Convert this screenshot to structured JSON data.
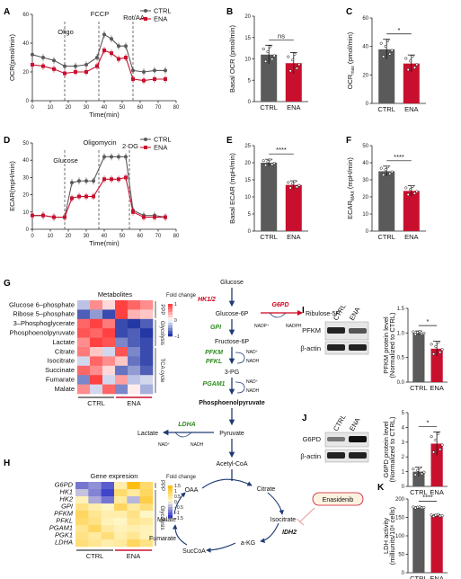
{
  "colors": {
    "ctrl": "#5a5a5a",
    "ena": "#c8102e",
    "green": "#2e8b1e",
    "red": "#d0021b",
    "navy": "#1f3b73"
  },
  "panel_letters": [
    "A",
    "B",
    "C",
    "D",
    "E",
    "F",
    "G",
    "H",
    "I",
    "J",
    "K"
  ],
  "chart_data": [
    {
      "id": "A",
      "type": "line",
      "xlabel": "Time(min)",
      "ylabel": "OCR(pmol/min)",
      "xlim": [
        0,
        80
      ],
      "ylim": [
        0,
        60
      ],
      "xticks": [
        "0",
        "10",
        "20",
        "30",
        "40",
        "50",
        "60",
        "70",
        "80"
      ],
      "yticks": [
        "0",
        "20",
        "40",
        "60"
      ],
      "annotations": [
        {
          "text": "Oligo",
          "x": 18
        },
        {
          "text": "FCCP",
          "x": 37
        },
        {
          "text": "Rot/AA",
          "x": 56
        }
      ],
      "legend": [
        "CTRL",
        "ENA"
      ],
      "series": [
        {
          "name": "CTRL",
          "x": [
            0,
            6,
            12,
            18,
            24,
            30,
            36,
            40,
            44,
            48,
            52,
            56,
            62,
            68,
            74
          ],
          "y": [
            32,
            30,
            28,
            24,
            24,
            25,
            30,
            46,
            43,
            38,
            38,
            21,
            20,
            21,
            21
          ]
        },
        {
          "name": "ENA",
          "x": [
            0,
            6,
            12,
            18,
            24,
            30,
            36,
            40,
            44,
            48,
            52,
            56,
            62,
            68,
            74
          ],
          "y": [
            25,
            24,
            22,
            19,
            20,
            20,
            24,
            35,
            33,
            29,
            30,
            15,
            14,
            15,
            15
          ]
        }
      ]
    },
    {
      "id": "B",
      "type": "bar",
      "ylabel": "Basal OCR (pmol/min)",
      "categories": [
        "CTRL",
        "ENA"
      ],
      "values": [
        11,
        9
      ],
      "errors": [
        2.2,
        2.5
      ],
      "ylim": [
        0,
        20
      ],
      "yticks": [
        "0",
        "5",
        "10",
        "15",
        "20"
      ],
      "sig": "ns"
    },
    {
      "id": "C",
      "type": "bar",
      "ylabel": "OCR",
      "ylabel_sub": "max",
      "ylabel_unit": "(pmol/min)",
      "categories": [
        "CTRL",
        "ENA"
      ],
      "values": [
        38,
        28
      ],
      "errors": [
        7,
        6
      ],
      "ylim": [
        0,
        60
      ],
      "yticks": [
        "0",
        "20",
        "40",
        "60"
      ],
      "sig": "*"
    },
    {
      "id": "D",
      "type": "line",
      "xlabel": "Time(min)",
      "ylabel": "ECAR(mpH/min)",
      "xlim": [
        0,
        80
      ],
      "ylim": [
        0,
        50
      ],
      "xticks": [
        "0",
        "10",
        "20",
        "30",
        "40",
        "50",
        "60",
        "70",
        "80"
      ],
      "yticks": [
        "0",
        "10",
        "20",
        "30",
        "40",
        "50"
      ],
      "annotations": [
        {
          "text": "Glucose",
          "x": 18
        },
        {
          "text": "Oligomycin",
          "x": 37
        },
        {
          "text": "2-DG",
          "x": 54
        }
      ],
      "legend": [
        "CTRL",
        "ENA"
      ],
      "series": [
        {
          "name": "CTRL",
          "x": [
            0,
            6,
            12,
            18,
            22,
            26,
            30,
            34,
            40,
            44,
            48,
            52,
            56,
            62,
            68,
            74
          ],
          "y": [
            8,
            8,
            7,
            7,
            27,
            28,
            28,
            28,
            42,
            42,
            42,
            42,
            11,
            8,
            8,
            7
          ]
        },
        {
          "name": "ENA",
          "x": [
            0,
            6,
            12,
            18,
            22,
            26,
            30,
            34,
            40,
            44,
            48,
            52,
            56,
            62,
            68,
            74
          ],
          "y": [
            8,
            8,
            7,
            7,
            18,
            19,
            19,
            19,
            29,
            29,
            29,
            30,
            10,
            7,
            7,
            7
          ]
        }
      ]
    },
    {
      "id": "E",
      "type": "bar",
      "ylabel": "Basal ECAR (mpH/min)",
      "categories": [
        "CTRL",
        "ENA"
      ],
      "values": [
        20,
        13.5
      ],
      "errors": [
        1,
        1.2
      ],
      "ylim": [
        0,
        25
      ],
      "yticks": [
        "0",
        "5",
        "10",
        "15",
        "20",
        "25"
      ],
      "sig": "****"
    },
    {
      "id": "F",
      "type": "bar",
      "ylabel": "ECAR",
      "ylabel_sub": "MAX",
      "ylabel_unit": "(mpH/min)",
      "categories": [
        "CTRL",
        "ENA"
      ],
      "values": [
        35,
        23.5
      ],
      "errors": [
        3,
        3
      ],
      "ylim": [
        0,
        50
      ],
      "yticks": [
        "0",
        "10",
        "20",
        "30",
        "40",
        "50"
      ],
      "sig": "****"
    },
    {
      "id": "G",
      "type": "heatmap",
      "title": "Metabolites",
      "legend_title": "Fold change",
      "rows": [
        "Glucose 6–phosphate",
        "Ribose 5–phosphate",
        "3–Phosphoglycerate",
        "Phosphoenolpyruvate",
        "Lactate",
        "Citrate",
        "Isocitrate",
        "Succinate",
        "Fumarate",
        "Malate"
      ],
      "groups": [
        "CTRL",
        "ENA"
      ],
      "row_groups": [
        {
          "label": "PPP",
          "from": 0,
          "to": 1
        },
        {
          "label": "Glycolysis",
          "from": 2,
          "to": 4
        },
        {
          "label": "TCA cycle",
          "from": 5,
          "to": 9
        }
      ],
      "colorbar_ticks": [
        "1",
        "0",
        "−1"
      ],
      "values": [
        [
          -0.3,
          0.6,
          0.2,
          1.0,
          0.8,
          0.6
        ],
        [
          -0.8,
          -0.5,
          -0.9,
          1.0,
          0.4,
          0.3
        ],
        [
          0.8,
          1.0,
          0.7,
          -0.9,
          -1.0,
          -0.8
        ],
        [
          0.9,
          0.8,
          1.0,
          -0.9,
          -0.8,
          -1.0
        ],
        [
          0.6,
          1.0,
          0.9,
          -0.6,
          -0.8,
          -0.9
        ],
        [
          0.7,
          0.3,
          -0.2,
          0.9,
          -0.6,
          -0.9
        ],
        [
          -0.2,
          0.8,
          0.6,
          0.3,
          -0.7,
          -0.9
        ],
        [
          0.8,
          0.6,
          0.2,
          -0.7,
          -0.5,
          -0.8
        ],
        [
          -0.6,
          1.0,
          -0.2,
          0.5,
          -0.3,
          -0.2
        ],
        [
          0.6,
          -0.2,
          0.8,
          -0.6,
          0.1,
          -0.4
        ]
      ]
    },
    {
      "id": "H",
      "type": "heatmap",
      "title": "Gene expresion",
      "legend_title": "Fold change",
      "rows": [
        "G6PD",
        "HK1",
        "HK2",
        "GPI",
        "PFKM",
        "PFKL",
        "PGAM1",
        "PGK1",
        "LDHA"
      ],
      "groups": [
        "CTRL",
        "ENA"
      ],
      "row_groups": [
        {
          "label": "PPP",
          "from": 0,
          "to": 0
        },
        {
          "label": "Glycolysis",
          "from": 1,
          "to": 8
        }
      ],
      "colorbar_ticks": [
        "1.5",
        "1",
        "0.5",
        "0",
        "−0.5",
        "−1",
        "−1.5"
      ],
      "values": [
        [
          -1.0,
          -0.8,
          -1.2,
          0.3,
          1.5,
          0.8
        ],
        [
          -0.4,
          -0.9,
          -1.4,
          0.8,
          0.4,
          0.9
        ],
        [
          0.2,
          -0.6,
          -1.0,
          0.4,
          -0.5,
          1.1
        ],
        [
          0.6,
          0.3,
          0.1,
          0.9,
          0.4,
          0.7
        ],
        [
          0.9,
          0.5,
          0.3,
          0.3,
          0.6,
          0.1
        ],
        [
          0.8,
          0.6,
          0.2,
          0.1,
          0.5,
          0.4
        ],
        [
          0.5,
          0.9,
          0.4,
          0.2,
          0.3,
          0.2
        ],
        [
          0.6,
          0.4,
          0.7,
          0.3,
          0.5,
          0.2
        ],
        [
          0.7,
          0.5,
          0.3,
          0.4,
          0.9,
          0.6
        ]
      ]
    },
    {
      "id": "I",
      "type": "bar",
      "ylabel": "PFKM protein level",
      "ylabel2": "(Normalized to CTRL)",
      "categories": [
        "CTRL",
        "ENA"
      ],
      "values": [
        1.0,
        0.68
      ],
      "errors": [
        0.04,
        0.15
      ],
      "ylim": [
        0,
        1.5
      ],
      "yticks": [
        "0.0",
        "0.5",
        "1.0",
        "1.5"
      ],
      "sig": "*"
    },
    {
      "id": "J",
      "type": "bar",
      "ylabel": "G6PD protein level",
      "ylabel2": "(Normalized to CTRL)",
      "categories": [
        "CTRL",
        "ENA"
      ],
      "values": [
        1.0,
        2.9
      ],
      "errors": [
        0.3,
        0.8
      ],
      "ylim": [
        0,
        5
      ],
      "yticks": [
        "0",
        "1",
        "2",
        "3",
        "4",
        "5"
      ],
      "sig": "*"
    },
    {
      "id": "K",
      "type": "bar",
      "ylabel": "LDH activity",
      "ylabel2": "(milliunits/10⁶ cells)",
      "categories": [
        "CTRL",
        "ENA"
      ],
      "values": [
        177,
        155
      ],
      "errors": [
        2,
        3
      ],
      "ylim": [
        0,
        200
      ],
      "yticks": [
        "0",
        "50",
        "100",
        "150",
        "200"
      ],
      "sig": "****"
    }
  ],
  "blots": {
    "I": {
      "lanes": [
        "CTRL",
        "ENA"
      ],
      "bands": [
        "PFKM",
        "β-actin"
      ]
    },
    "J": {
      "lanes": [
        "CTRL",
        "ENA"
      ],
      "bands": [
        "G6PD",
        "β-actin"
      ]
    }
  },
  "pathway": {
    "glucose": "Glucose",
    "hk": "HK1/2",
    "g6p": "Glucose-6P",
    "g6pd": "G6PD",
    "ribulose": "Ribulose-5P",
    "nadp": "NADP⁺",
    "nadph": "NADPH",
    "gpi": "GPI",
    "f6p": "Fructose-6P",
    "pfkm": "PFKM",
    "pfkl": "PFKL",
    "nad": "NAD⁺",
    "nadh": "NADH",
    "pg3": "3-PG",
    "pgam1": "PGAM1",
    "pep": "Phosphoenolpyruvate",
    "pyruvate": "Pyruvate",
    "ldha": "LDHA",
    "lactate": "Lactate",
    "acetyl": "Acetyl-CoA",
    "oaa": "OAA",
    "citrate": "Citrate",
    "isocitrate": "Isocitrate",
    "idh2": "IDH2",
    "akg": "a-KG",
    "succoa": "SucCoA",
    "fumarate": "Fumarate",
    "malate": "Malate",
    "enasidenib": "Enasidenib"
  }
}
